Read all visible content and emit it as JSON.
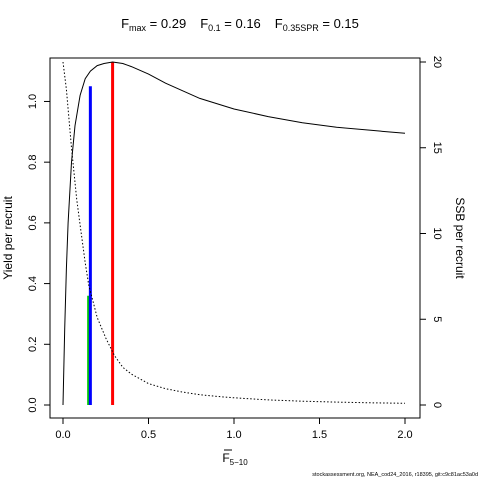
{
  "chart_data": {
    "type": "line",
    "title": {
      "parts": [
        {
          "base": "F",
          "sub": "max",
          "rest": " = 0.29"
        },
        {
          "base": "F",
          "sub": "0.1",
          "rest": " = 0.16"
        },
        {
          "base": "F",
          "sub": "0.35SPR",
          "rest": " = 0.15"
        }
      ]
    },
    "xlabel": {
      "base": "F",
      "sub": "5−10"
    },
    "ylabel_left": "Yield per recruit",
    "ylabel_right": "SSB per recruit",
    "footnote": "stockassessment.org, NEA_cod24_2016, r18395, git:c9c81ac53a0d",
    "x_ticks": [
      "0.0",
      "0.5",
      "1.0",
      "1.5",
      "2.0"
    ],
    "y_left_ticks": [
      "0.0",
      "0.2",
      "0.4",
      "0.6",
      "0.8",
      "1.0"
    ],
    "y_right_ticks": [
      "0",
      "5",
      "10",
      "15",
      "20"
    ],
    "xlim": [
      0,
      2.0
    ],
    "ylim_left": [
      0,
      1.13
    ],
    "ylim_right": [
      0,
      20
    ],
    "series": [
      {
        "name": "Yield per recruit",
        "axis": "left",
        "style": "solid",
        "color": "#000000",
        "x": [
          0,
          0.01,
          0.02,
          0.03,
          0.05,
          0.07,
          0.1,
          0.13,
          0.16,
          0.2,
          0.24,
          0.29,
          0.35,
          0.4,
          0.5,
          0.6,
          0.7,
          0.8,
          1.0,
          1.2,
          1.4,
          1.6,
          1.8,
          2.0
        ],
        "y": [
          0,
          0.25,
          0.45,
          0.6,
          0.8,
          0.92,
          1.02,
          1.075,
          1.1,
          1.118,
          1.125,
          1.13,
          1.125,
          1.115,
          1.09,
          1.06,
          1.035,
          1.01,
          0.975,
          0.95,
          0.93,
          0.915,
          0.905,
          0.895
        ]
      },
      {
        "name": "SSB per recruit",
        "axis": "right",
        "style": "dotted",
        "color": "#000000",
        "x": [
          0,
          0.02,
          0.05,
          0.08,
          0.1,
          0.13,
          0.15,
          0.2,
          0.25,
          0.3,
          0.35,
          0.4,
          0.5,
          0.6,
          0.7,
          0.8,
          0.9,
          1.0,
          1.2,
          1.4,
          1.6,
          1.8,
          2.0
        ],
        "y": [
          20,
          18.4,
          15.0,
          12.0,
          10.5,
          8.3,
          7.0,
          5.1,
          3.9,
          2.9,
          2.2,
          1.8,
          1.25,
          0.95,
          0.75,
          0.6,
          0.5,
          0.42,
          0.3,
          0.22,
          0.17,
          0.13,
          0.1
        ]
      }
    ],
    "reference_lines": [
      {
        "name": "F0.35SPR",
        "x": 0.15,
        "y": 0.36,
        "color": "#00cc00"
      },
      {
        "name": "F0.1",
        "x": 0.16,
        "y": 1.05,
        "color": "#0000ff"
      },
      {
        "name": "Fmax",
        "x": 0.29,
        "y": 1.13,
        "color": "#ff0000"
      }
    ],
    "grid": false,
    "legend": "none"
  }
}
